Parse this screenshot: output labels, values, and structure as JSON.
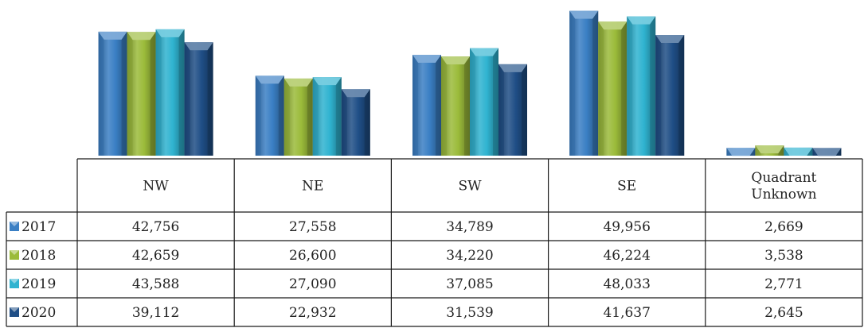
{
  "chart_data": {
    "type": "bar",
    "categories": [
      "NW",
      "NE",
      "SW",
      "SE",
      "Quadrant Unknown"
    ],
    "category_lines": [
      [
        "NW"
      ],
      [
        "NE"
      ],
      [
        "SW"
      ],
      [
        "SE"
      ],
      [
        "Quadrant",
        "Unknown"
      ]
    ],
    "series": [
      {
        "name": "2017",
        "values": [
          42756,
          27558,
          34789,
          49956,
          2669
        ],
        "labels": [
          "42,756",
          "27,558",
          "34,789",
          "49,956",
          "2,669"
        ],
        "color": "#3a7fc4"
      },
      {
        "name": "2018",
        "values": [
          42659,
          26600,
          34220,
          46224,
          3538
        ],
        "labels": [
          "42,659",
          "26,600",
          "34,220",
          "46,224",
          "3,538"
        ],
        "color": "#9bbb3a"
      },
      {
        "name": "2019",
        "values": [
          43588,
          27090,
          37085,
          48033,
          2771
        ],
        "labels": [
          "43,588",
          "27,090",
          "37,085",
          "48,033",
          "2,771"
        ],
        "color": "#2fb3d0"
      },
      {
        "name": "2020",
        "values": [
          39112,
          22932,
          31539,
          41637,
          2645
        ],
        "labels": [
          "39,112",
          "22,932",
          "31,539",
          "41,637",
          "2,645"
        ],
        "color": "#1f4e86"
      }
    ],
    "ylim": [
      0,
      51500
    ],
    "legend": "data-table",
    "grid": false
  }
}
